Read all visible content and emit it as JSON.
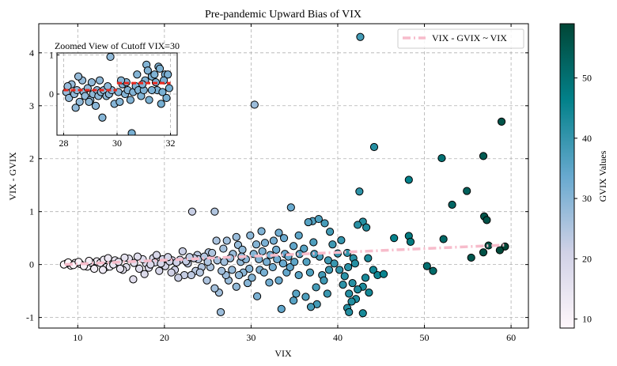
{
  "chart_data": [
    {
      "type": "scatter",
      "title": "Pre-pandemic Upward Bias of VIX",
      "xlabel": "VIX",
      "ylabel": "VIX - GVIX",
      "xlim": [
        5.5,
        62
      ],
      "ylim": [
        -1.2,
        4.55
      ],
      "xticks": [
        10,
        20,
        30,
        40,
        50,
        60
      ],
      "yticks": [
        -1,
        0,
        1,
        2,
        3,
        4
      ],
      "grid": true,
      "grid_style": "dashed",
      "legend": {
        "placement": "top-right",
        "entries": [
          "VIX - GVIX ~ VIX"
        ]
      },
      "colorbar": {
        "label": "GVIX Values",
        "ticks": [
          10,
          20,
          30,
          40,
          50
        ],
        "range": [
          8.5,
          59
        ],
        "colormap": "PuBuGn"
      },
      "fit_line": {
        "name": "VIX - GVIX ~ VIX",
        "color": "#f7bccb",
        "style": "dashdot",
        "x": [
          8.5,
          59.5
        ],
        "y": [
          0.0,
          0.37
        ]
      },
      "points": [
        [
          42.6,
          4.3
        ],
        [
          30.4,
          3.02
        ],
        [
          58.9,
          2.7
        ],
        [
          44.2,
          2.22
        ],
        [
          56.8,
          2.05
        ],
        [
          52.0,
          2.01
        ],
        [
          48.2,
          1.6
        ],
        [
          42.5,
          1.38
        ],
        [
          54.9,
          1.39
        ],
        [
          53.2,
          1.13
        ],
        [
          23.2,
          1.0
        ],
        [
          25.8,
          1.0
        ],
        [
          34.6,
          1.08
        ],
        [
          56.9,
          0.91
        ],
        [
          57.2,
          0.84
        ],
        [
          42.9,
          0.81
        ],
        [
          42.3,
          0.75
        ],
        [
          43.3,
          0.7
        ],
        [
          37.1,
          0.82
        ],
        [
          37.8,
          0.86
        ],
        [
          36.6,
          0.8
        ],
        [
          38.5,
          0.78
        ],
        [
          46.5,
          0.5
        ],
        [
          48.2,
          0.54
        ],
        [
          52.2,
          0.48
        ],
        [
          48.4,
          0.43
        ],
        [
          56.8,
          0.23
        ],
        [
          55.4,
          0.13
        ],
        [
          59.3,
          0.34
        ],
        [
          58.7,
          0.27
        ],
        [
          57.4,
          0.36
        ],
        [
          50.3,
          -0.03
        ],
        [
          51.0,
          -0.12
        ],
        [
          31.2,
          0.63
        ],
        [
          33.2,
          0.6
        ],
        [
          35.5,
          0.55
        ],
        [
          39.1,
          0.62
        ],
        [
          40.4,
          0.46
        ],
        [
          39.4,
          0.38
        ],
        [
          37.2,
          0.42
        ],
        [
          29.9,
          0.55
        ],
        [
          28.3,
          0.52
        ],
        [
          27.2,
          0.45
        ],
        [
          26.0,
          0.45
        ],
        [
          25.1,
          0.23
        ],
        [
          26.8,
          0.3
        ],
        [
          28.5,
          0.37
        ],
        [
          30.6,
          0.38
        ],
        [
          31.6,
          0.41
        ],
        [
          32.6,
          0.45
        ],
        [
          33.8,
          0.5
        ],
        [
          34.9,
          0.35
        ],
        [
          36.1,
          0.3
        ],
        [
          35.6,
          0.2
        ],
        [
          33.9,
          0.2
        ],
        [
          32.9,
          0.28
        ],
        [
          27.9,
          0.2
        ],
        [
          29.0,
          0.28
        ],
        [
          38.9,
          0.08
        ],
        [
          40.0,
          0.21
        ],
        [
          41.1,
          0.22
        ],
        [
          41.8,
          0.12
        ],
        [
          43.5,
          0.12
        ],
        [
          42.0,
          0.02
        ],
        [
          41.2,
          -0.05
        ],
        [
          44.1,
          -0.1
        ],
        [
          40.8,
          -0.22
        ],
        [
          41.7,
          -0.35
        ],
        [
          43.2,
          -0.25
        ],
        [
          42.9,
          -0.42
        ],
        [
          44.6,
          -0.2
        ],
        [
          45.3,
          -0.18
        ],
        [
          41.3,
          -0.55
        ],
        [
          42.1,
          -0.65
        ],
        [
          43.6,
          -0.53
        ],
        [
          42.3,
          -0.47
        ],
        [
          41.6,
          -0.7
        ],
        [
          41.1,
          -0.82
        ],
        [
          42.9,
          -0.92
        ],
        [
          41.3,
          -0.9
        ],
        [
          40.6,
          -0.38
        ],
        [
          38.2,
          -0.2
        ],
        [
          37.5,
          -0.43
        ],
        [
          38.8,
          -0.55
        ],
        [
          37.6,
          -0.75
        ],
        [
          36.9,
          -0.8
        ],
        [
          36.3,
          -0.61
        ],
        [
          35.2,
          -0.55
        ],
        [
          34.9,
          -0.68
        ],
        [
          33.5,
          -0.84
        ],
        [
          33.2,
          -0.3
        ],
        [
          35.5,
          -0.2
        ],
        [
          32.1,
          -0.34
        ],
        [
          34.1,
          -0.15
        ],
        [
          31.0,
          -0.1
        ],
        [
          30.7,
          -0.6
        ],
        [
          29.6,
          -0.35
        ],
        [
          29.1,
          -0.15
        ],
        [
          28.3,
          -0.42
        ],
        [
          27.4,
          -0.3
        ],
        [
          26.3,
          -0.53
        ],
        [
          25.8,
          -0.45
        ],
        [
          24.9,
          -0.3
        ],
        [
          26.5,
          -0.9
        ],
        [
          22.3,
          -0.2
        ],
        [
          23.6,
          -0.12
        ],
        [
          21.6,
          -0.25
        ],
        [
          24.3,
          -0.05
        ],
        [
          28.8,
          0.05
        ],
        [
          27.6,
          0.12
        ],
        [
          30.3,
          0.2
        ],
        [
          32.2,
          0.18
        ],
        [
          31.8,
          0.05
        ],
        [
          33.7,
          0.02
        ],
        [
          34.5,
          -0.05
        ],
        [
          36.4,
          0.05
        ],
        [
          37.9,
          0.15
        ],
        [
          39.6,
          0.02
        ],
        [
          38.4,
          -0.3
        ],
        [
          40.2,
          -0.1
        ],
        [
          22.1,
          0.25
        ],
        [
          23.8,
          0.18
        ],
        [
          20.9,
          0.08
        ],
        [
          19.8,
          0.1
        ],
        [
          18.7,
          0.12
        ],
        [
          17.9,
          0.02
        ],
        [
          16.4,
          -0.28
        ],
        [
          15.6,
          -0.05
        ],
        [
          14.3,
          0.08
        ],
        [
          13.3,
          -0.05
        ],
        [
          12.2,
          0.06
        ],
        [
          11.1,
          -0.04
        ],
        [
          10.3,
          0.01
        ],
        [
          9.7,
          0.03
        ],
        [
          9.2,
          -0.02
        ],
        [
          8.7,
          0.02
        ],
        [
          8.4,
          0.0
        ],
        [
          8.9,
          0.04
        ],
        [
          9.5,
          -0.01
        ],
        [
          10.1,
          0.05
        ],
        [
          10.7,
          -0.03
        ],
        [
          11.5,
          0.04
        ],
        [
          11.9,
          -0.08
        ],
        [
          12.6,
          0.03
        ],
        [
          13.0,
          0.09
        ],
        [
          13.7,
          -0.04
        ],
        [
          14.1,
          0.0
        ],
        [
          14.7,
          0.05
        ],
        [
          15.2,
          -0.1
        ],
        [
          15.9,
          0.11
        ],
        [
          16.5,
          0.03
        ],
        [
          17.1,
          -0.08
        ],
        [
          17.5,
          0.1
        ],
        [
          18.2,
          -0.06
        ],
        [
          18.9,
          0.04
        ],
        [
          19.4,
          -0.12
        ],
        [
          20.1,
          -0.03
        ],
        [
          20.6,
          0.06
        ],
        [
          21.2,
          -0.1
        ],
        [
          21.8,
          0.09
        ],
        [
          22.7,
          0.02
        ],
        [
          23.1,
          -0.2
        ],
        [
          23.9,
          0.1
        ],
        [
          24.6,
          0.15
        ],
        [
          25.3,
          -0.05
        ],
        [
          26.1,
          0.08
        ],
        [
          26.9,
          0.05
        ],
        [
          27.8,
          -0.1
        ],
        [
          28.6,
          -0.2
        ],
        [
          29.4,
          0.1
        ],
        [
          30.1,
          -0.25
        ],
        [
          30.9,
          0.1
        ],
        [
          31.5,
          -0.15
        ],
        [
          32.5,
          -0.05
        ],
        [
          33.0,
          0.1
        ],
        [
          35.0,
          0.05
        ],
        [
          36.8,
          -0.15
        ],
        [
          37.3,
          0.2
        ],
        [
          39.0,
          -0.1
        ],
        [
          16.9,
          0.15
        ],
        [
          19.1,
          0.18
        ],
        [
          20.4,
          0.14
        ],
        [
          22.5,
          0.06
        ],
        [
          24.1,
          -0.15
        ],
        [
          25.5,
          0.22
        ],
        [
          27.1,
          -0.2
        ],
        [
          28.9,
          0.15
        ],
        [
          31.3,
          0.25
        ],
        [
          34.3,
          0.15
        ],
        [
          12.9,
          -0.1
        ],
        [
          14.9,
          -0.08
        ],
        [
          17.7,
          -0.18
        ],
        [
          19.6,
          0.02
        ],
        [
          21.4,
          0.04
        ],
        [
          23.4,
          0.12
        ],
        [
          25.0,
          0.05
        ],
        [
          26.6,
          -0.12
        ],
        [
          29.8,
          -0.08
        ],
        [
          11.3,
          0.07
        ],
        [
          13.5,
          0.12
        ],
        [
          15.4,
          0.13
        ],
        [
          18.4,
          0.0
        ],
        [
          20.8,
          -0.15
        ],
        [
          22.9,
          0.14
        ]
      ]
    },
    {
      "type": "scatter",
      "title": "Zoomed View of Cutoff VIX=30",
      "xlim": [
        27.75,
        32.25
      ],
      "ylim": [
        -1.05,
        1.05
      ],
      "xticks": [
        28,
        30,
        32
      ],
      "yticks": [
        0,
        1
      ],
      "grid": true,
      "cutoff_segments": [
        {
          "x": [
            28.0,
            30.0
          ],
          "y": [
            0.1,
            0.1
          ]
        },
        {
          "x": [
            30.0,
            32.0
          ],
          "y": [
            0.28,
            0.28
          ]
        }
      ],
      "points": [
        [
          28.1,
          0.05
        ],
        [
          28.2,
          -0.1
        ],
        [
          28.3,
          0.25
        ],
        [
          28.4,
          0.0
        ],
        [
          28.45,
          -0.35
        ],
        [
          28.5,
          0.1
        ],
        [
          28.6,
          -0.2
        ],
        [
          28.7,
          0.35
        ],
        [
          28.75,
          0.05
        ],
        [
          28.8,
          -0.05
        ],
        [
          28.9,
          0.15
        ],
        [
          29.0,
          -0.15
        ],
        [
          29.05,
          0.3
        ],
        [
          29.1,
          0.0
        ],
        [
          29.2,
          -0.3
        ],
        [
          29.25,
          0.1
        ],
        [
          29.3,
          -0.05
        ],
        [
          29.4,
          0.05
        ],
        [
          29.45,
          -0.6
        ],
        [
          29.5,
          0.1
        ],
        [
          29.6,
          -0.05
        ],
        [
          29.7,
          0.0
        ],
        [
          29.75,
          0.95
        ],
        [
          29.8,
          0.1
        ],
        [
          29.9,
          -0.25
        ],
        [
          28.15,
          0.2
        ],
        [
          28.55,
          0.45
        ],
        [
          28.95,
          -0.2
        ],
        [
          29.35,
          0.35
        ],
        [
          29.65,
          0.2
        ],
        [
          30.05,
          0.05
        ],
        [
          30.1,
          -0.2
        ],
        [
          30.2,
          0.25
        ],
        [
          30.3,
          0.0
        ],
        [
          30.35,
          0.3
        ],
        [
          30.4,
          0.1
        ],
        [
          30.5,
          -0.15
        ],
        [
          30.55,
          -1.0
        ],
        [
          30.6,
          0.05
        ],
        [
          30.7,
          0.2
        ],
        [
          30.8,
          0.1
        ],
        [
          30.9,
          -0.05
        ],
        [
          31.0,
          0.1
        ],
        [
          31.05,
          0.35
        ],
        [
          31.1,
          0.75
        ],
        [
          31.15,
          0.6
        ],
        [
          31.2,
          -0.15
        ],
        [
          31.3,
          0.45
        ],
        [
          31.4,
          0.5
        ],
        [
          31.5,
          0.1
        ],
        [
          31.55,
          0.7
        ],
        [
          31.6,
          0.65
        ],
        [
          31.65,
          -0.25
        ],
        [
          31.7,
          0.05
        ],
        [
          31.8,
          0.5
        ],
        [
          31.85,
          -0.1
        ],
        [
          31.9,
          0.5
        ],
        [
          31.95,
          0.15
        ],
        [
          31.6,
          1.15
        ],
        [
          31.3,
          0.1
        ],
        [
          30.75,
          0.5
        ],
        [
          30.95,
          0.25
        ],
        [
          31.45,
          0.3
        ],
        [
          31.75,
          0.35
        ],
        [
          30.15,
          0.35
        ]
      ]
    }
  ]
}
